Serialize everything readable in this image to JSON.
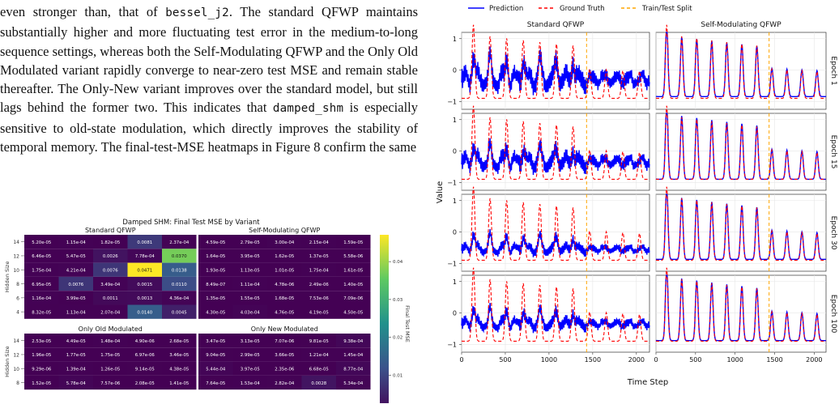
{
  "paragraph": [
    {
      "t": "even stronger than, that of "
    },
    {
      "t": "bessel_j2",
      "code": true
    },
    {
      "t": ". The standard QFWP maintains substantially higher and more fluctuating test error in the medium-to-long sequence settings, whereas both the Self-Modulating QFWP and the Only Old Modulated variant rapidly converge to near-zero test MSE and remain stable thereafter. The Only-New variant improves over the standard model, but still lags behind the former two. This indicates that "
    },
    {
      "t": "damped_shm",
      "code": true
    },
    {
      "t": " is especially sensitive to old-state modulation, which directly improves the stability of temporal memory. The final-test-MSE heatmaps in Figure 8 confirm the same"
    }
  ],
  "heatmap_figure": {
    "suptitle": "Damped SHM: Final Test MSE by Variant",
    "ylabel": "Hidden Size",
    "colorbar_label": "Final Test MSE",
    "colorbar_ticks": [
      "0.01",
      "0.02",
      "0.03",
      "0.04"
    ],
    "hidden_sizes": [
      "14",
      "12",
      "10",
      "8",
      "6",
      "4"
    ]
  },
  "chart_data": [
    {
      "type": "heatmap",
      "title": "Standard QFWP",
      "ylabel": "Hidden Size",
      "rows": [
        "14",
        "12",
        "10",
        "8",
        "6",
        "4"
      ],
      "values": [
        [
          "5.20e-05",
          "1.15e-04",
          "1.82e-05",
          "0.0081",
          "2.37e-04"
        ],
        [
          "6.46e-05",
          "5.47e-05",
          "0.0026",
          "7.78e-04",
          "0.0370"
        ],
        [
          "1.75e-04",
          "4.21e-04",
          "0.0076",
          "0.0471",
          "0.0138"
        ],
        [
          "6.95e-05",
          "0.0076",
          "3.49e-04",
          "0.0015",
          "0.0110"
        ],
        [
          "1.16e-04",
          "3.99e-05",
          "0.0011",
          "0.0013",
          "4.36e-04"
        ],
        [
          "8.32e-05",
          "1.13e-04",
          "2.07e-04",
          "0.0140",
          "0.0045"
        ]
      ]
    },
    {
      "type": "heatmap",
      "title": "Self-Modulating QFWP",
      "rows": [
        "14",
        "12",
        "10",
        "8",
        "6",
        "4"
      ],
      "values": [
        [
          "4.59e-05",
          "2.79e-05",
          "3.00e-04",
          "2.15e-04",
          "1.59e-05"
        ],
        [
          "1.64e-05",
          "3.95e-05",
          "1.62e-05",
          "1.37e-05",
          "5.58e-06"
        ],
        [
          "1.93e-05",
          "1.13e-05",
          "1.01e-05",
          "1.75e-04",
          "1.61e-05"
        ],
        [
          "8.49e-07",
          "1.11e-04",
          "4.78e-06",
          "2.49e-06",
          "1.40e-05"
        ],
        [
          "1.35e-05",
          "1.55e-05",
          "1.68e-05",
          "7.53e-06",
          "7.09e-06"
        ],
        [
          "4.30e-05",
          "4.03e-04",
          "4.76e-05",
          "4.19e-05",
          "4.50e-05"
        ]
      ]
    },
    {
      "type": "heatmap",
      "title": "Only Old Modulated",
      "ylabel": "Hidden Size",
      "rows": [
        "14",
        "12",
        "10",
        "8"
      ],
      "values": [
        [
          "2.53e-05",
          "4.49e-05",
          "1.48e-04",
          "4.90e-06",
          "2.68e-05"
        ],
        [
          "1.96e-05",
          "1.77e-05",
          "1.75e-05",
          "6.97e-06",
          "3.46e-05"
        ],
        [
          "9.29e-06",
          "1.39e-04",
          "1.26e-05",
          "9.14e-05",
          "4.38e-05"
        ],
        [
          "1.52e-05",
          "5.78e-04",
          "7.57e-06",
          "2.08e-05",
          "1.41e-05"
        ]
      ]
    },
    {
      "type": "heatmap",
      "title": "Only New Modulated",
      "rows": [
        "14",
        "12",
        "10",
        "8"
      ],
      "values": [
        [
          "3.47e-05",
          "3.13e-05",
          "7.07e-06",
          "9.81e-05",
          "9.38e-04"
        ],
        [
          "9.04e-05",
          "2.99e-05",
          "3.66e-05",
          "1.21e-04",
          "1.45e-04"
        ],
        [
          "5.44e-04",
          "3.97e-05",
          "2.35e-06",
          "6.68e-05",
          "8.77e-04"
        ],
        [
          "7.64e-05",
          "1.53e-04",
          "2.82e-04",
          "0.0028",
          "5.34e-04"
        ]
      ]
    },
    {
      "type": "line",
      "legend": [
        "Prediction",
        "Ground Truth",
        "Train/Test Split"
      ],
      "legend_placement": "top",
      "column_titles": [
        "Standard QFWP",
        "Self-Modulating QFWP"
      ],
      "row_labels": [
        "Epoch 1",
        "Epoch 15",
        "Epoch 30",
        "Epoch 100"
      ],
      "xlabel": "Time Step",
      "ylabel": "Value",
      "xlim": [
        0,
        2150
      ],
      "ylim": [
        -1.25,
        1.2
      ],
      "xticks": [
        "0",
        "500",
        "1000",
        "1500",
        "2000"
      ],
      "yticks": [
        "1",
        "0",
        "−1"
      ],
      "split_x": 1430,
      "grid": true,
      "colors": {
        "prediction": "#0000ff",
        "ground_truth": "#ff0000",
        "split": "#ffa500"
      }
    }
  ]
}
